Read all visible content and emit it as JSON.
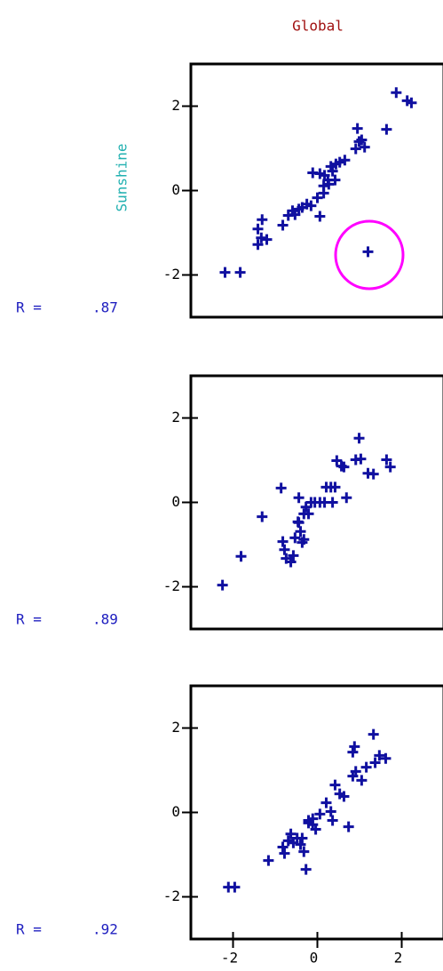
{
  "chart_data": [
    {
      "type": "scatter",
      "title": "Global",
      "y_label": "Sunshine",
      "annotation": [
        "R =",
        ".87"
      ],
      "color": "#1010a0",
      "xlim": [
        -3,
        3
      ],
      "ylim": [
        -3,
        3
      ],
      "yticks": [
        -2,
        0,
        2
      ],
      "x": [
        -2.19,
        -1.83,
        -1.41,
        -1.33,
        -1.2,
        -1.41,
        -1.31,
        -0.82,
        -0.69,
        -0.59,
        -0.53,
        -0.44,
        -0.36,
        -0.25,
        -0.15,
        0.06,
        0,
        0.15,
        -0.11,
        0.06,
        0.17,
        0.25,
        0.36,
        0.32,
        0.44,
        0.53,
        0.65,
        0.27,
        0.42,
        0.15,
        0.91,
        0.99,
        1.05,
        0.95,
        1.12,
        1.64,
        1.87,
        2.13,
        2.23,
        1.2
      ],
      "values": [
        -1.94,
        -1.94,
        -1.28,
        -1.12,
        -1.16,
        -0.91,
        -0.69,
        -0.82,
        -0.59,
        -0.48,
        -0.57,
        -0.44,
        -0.4,
        -0.32,
        -0.36,
        -0.61,
        -0.17,
        -0.06,
        0.42,
        0.4,
        0.36,
        0.25,
        0.46,
        0.57,
        0.63,
        0.67,
        0.72,
        0.15,
        0.25,
        0.11,
        0.99,
        1.16,
        1.2,
        1.47,
        1.03,
        1.45,
        2.32,
        2.13,
        2.08,
        -1.45
      ]
    },
    {
      "type": "scatter",
      "annotation": [
        "R =",
        ".89"
      ],
      "color": "#1010a0",
      "xlim": [
        -3,
        3
      ],
      "ylim": [
        -3,
        3
      ],
      "yticks": [
        -2,
        0,
        2
      ],
      "x": [
        -2.25,
        -1.81,
        -1.31,
        -0.86,
        -0.82,
        -0.78,
        -0.74,
        -0.63,
        -0.57,
        -0.53,
        -0.44,
        -0.4,
        -0.36,
        -0.46,
        -0.32,
        -0.27,
        -0.21,
        -0.15,
        -0.06,
        0.06,
        0.21,
        0.32,
        0.42,
        0.17,
        0.36,
        0.69,
        0.46,
        0.57,
        0.63,
        0.91,
        1.03,
        0.99,
        1.2,
        1.33,
        1.64,
        1.73,
        -0.44,
        -0.32
      ],
      "values": [
        -1.96,
        -1.28,
        -0.34,
        0.34,
        -0.93,
        -1.12,
        -1.33,
        -1.41,
        -1.26,
        -0.84,
        -0.48,
        -0.69,
        -0.95,
        -0.46,
        -0.27,
        -0.11,
        -0.27,
        0,
        0,
        0,
        0.36,
        0.36,
        0.36,
        0,
        0,
        0.11,
        0.99,
        0.86,
        0.84,
        1.01,
        1.03,
        1.52,
        0.69,
        0.67,
        1.01,
        0.84,
        0.11,
        -0.88
      ]
    },
    {
      "type": "scatter",
      "annotation": [
        "R =",
        ".92"
      ],
      "color": "#1010a0",
      "xlim": [
        -3,
        3
      ],
      "ylim": [
        -3,
        3
      ],
      "yticks": [
        -2,
        0,
        2
      ],
      "xticks": [
        -2,
        0,
        2
      ],
      "x": [
        -2.11,
        -1.96,
        -1.16,
        -0.82,
        -0.78,
        -0.69,
        -0.63,
        -0.57,
        -0.48,
        -0.4,
        -0.32,
        -0.27,
        -0.36,
        -0.21,
        -0.11,
        -0.04,
        0.06,
        0.21,
        0.32,
        0.36,
        0.42,
        0.53,
        0.63,
        0.74,
        0.84,
        0.91,
        1.05,
        1.16,
        1.33,
        1.37,
        1.47,
        1.62,
        0.84,
        0.88,
        -0.21,
        -0.11
      ],
      "values": [
        -1.77,
        -1.77,
        -1.14,
        -0.82,
        -0.97,
        -0.67,
        -0.51,
        -0.72,
        -0.61,
        -0.76,
        -0.93,
        -1.35,
        -0.61,
        -0.19,
        -0.29,
        -0.4,
        -0.04,
        0.23,
        0.02,
        -0.19,
        0.65,
        0.44,
        0.38,
        -0.34,
        0.86,
        0.97,
        0.76,
        1.07,
        1.85,
        1.18,
        1.35,
        1.28,
        1.43,
        1.56,
        -0.25,
        -0.15
      ]
    }
  ]
}
